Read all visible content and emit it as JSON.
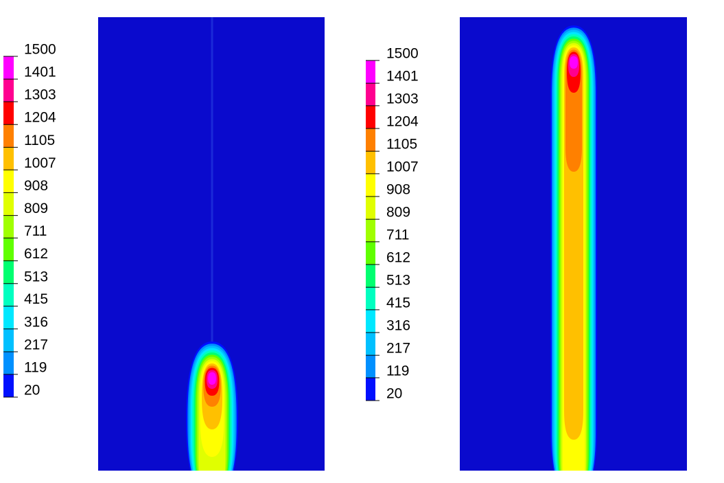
{
  "chart_data": [
    {
      "type": "contour",
      "background": "#0a0acd",
      "colorbar": {
        "ticks": [
          20,
          119,
          217,
          316,
          415,
          513,
          612,
          711,
          809,
          908,
          1007,
          1105,
          1204,
          1303,
          1401,
          1500
        ],
        "colors": [
          "#0010ff",
          "#0090ff",
          "#00c0ff",
          "#00e8ff",
          "#00ffc0",
          "#00ff70",
          "#60ff00",
          "#a0ff00",
          "#e0ff00",
          "#ffff00",
          "#ffc000",
          "#ff8000",
          "#ff0000",
          "#ff0090",
          "#ff00ff"
        ]
      }
    },
    {
      "type": "contour",
      "background": "#0a0acd",
      "colorbar": {
        "ticks": [
          20,
          119,
          217,
          316,
          415,
          513,
          612,
          711,
          809,
          908,
          1007,
          1105,
          1204,
          1303,
          1401,
          1500
        ],
        "colors": [
          "#0010ff",
          "#0090ff",
          "#00c0ff",
          "#00e8ff",
          "#00ffc0",
          "#00ff70",
          "#60ff00",
          "#a0ff00",
          "#e0ff00",
          "#ffff00",
          "#ffc000",
          "#ff8000",
          "#ff0000",
          "#ff0090",
          "#ff00ff"
        ]
      }
    }
  ]
}
